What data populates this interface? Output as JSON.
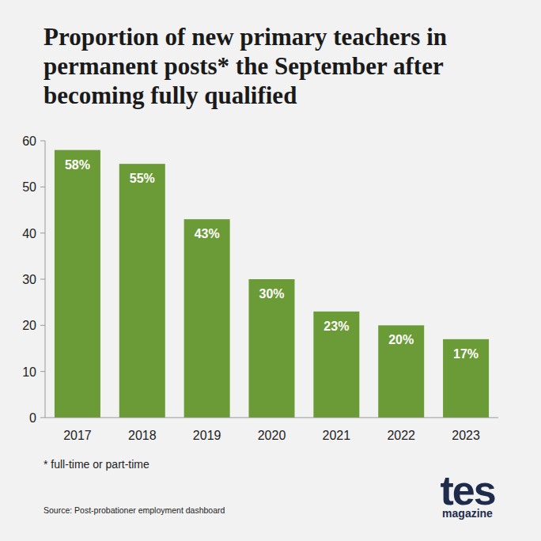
{
  "chart_data": {
    "type": "bar",
    "title": "Proportion of new primary teachers in permanent posts* the September after becoming fully qualified",
    "categories": [
      "2017",
      "2018",
      "2019",
      "2020",
      "2021",
      "2022",
      "2023"
    ],
    "values": [
      58,
      55,
      43,
      30,
      23,
      20,
      17
    ],
    "value_labels": [
      "58%",
      "55%",
      "43%",
      "30%",
      "23%",
      "20%",
      "17%"
    ],
    "color": "#6b9b37",
    "ylim": [
      0,
      60
    ],
    "yticks": [
      0,
      10,
      20,
      30,
      40,
      50,
      60
    ],
    "grid": false,
    "data_labels": true,
    "footnote": "* full-time or part-time",
    "source": "Source: Post-probationer employment dashboard",
    "brand": {
      "name": "tes",
      "tagline": "magazine"
    }
  }
}
